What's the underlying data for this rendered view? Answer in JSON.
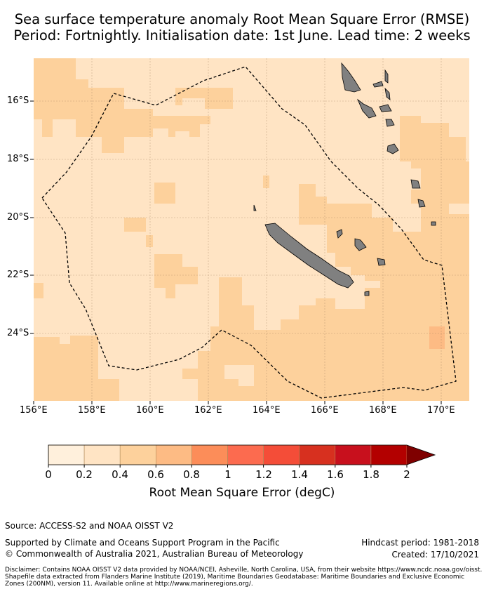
{
  "title": {
    "line1": "Sea surface temperature anomaly Root Mean Square Error (RMSE)",
    "line2": "Period: Fortnightly. Initialisation date: 1st June. Lead time: 2 weeks"
  },
  "map": {
    "lon_range": [
      156,
      171
    ],
    "lat_range": [
      -26.3,
      -14.7
    ],
    "lat_ticks": [
      "16°S",
      "18°S",
      "20°S",
      "22°S",
      "24°S"
    ],
    "lon_ticks": [
      "156°E",
      "158°E",
      "160°E",
      "162°E",
      "164°E",
      "166°E",
      "168°E",
      "170°E"
    ],
    "land_color": "#808080",
    "boundary_style": "dashed",
    "gridlines": true
  },
  "colorbar": {
    "ticks": [
      "0",
      "0.2",
      "0.4",
      "0.6",
      "0.8",
      "1",
      "1.2",
      "1.4",
      "1.6",
      "1.8",
      "2"
    ],
    "colors": [
      "#fff0dc",
      "#ffe4c4",
      "#fdd19c",
      "#fdbb84",
      "#fc8d59",
      "#fc6b4f",
      "#f44d38",
      "#d7301f",
      "#c8101d",
      "#b30000",
      "#7f0000"
    ],
    "label": "Root Mean Square Error (degC)",
    "extend": "max"
  },
  "footer": {
    "source": "Source: ACCESS-S2 and NOAA OISST V2",
    "supported": "Supported by Climate and Oceans Support Program in the Pacific",
    "copyright": "© Commonwealth of Australia 2021, Australian Bureau of Meteorology",
    "hindcast": "Hindcast period: 1981-2018",
    "created": "Created: 17/10/2021",
    "disclaimer": "Disclaimer: Contains NOAA OISST V2 data provided by NOAA/NCEI, Asheville, North Carolina, USA, from their website https://www.ncdc.noaa.gov/oisst. Shapefile data extracted from Flanders Marine Institute (2019), Maritime Boundaries Geodatabase: Maritime Boundaries and Exclusive Economic Zones (200NM), version 11. Available online at http://www.marineregions.org/."
  }
}
